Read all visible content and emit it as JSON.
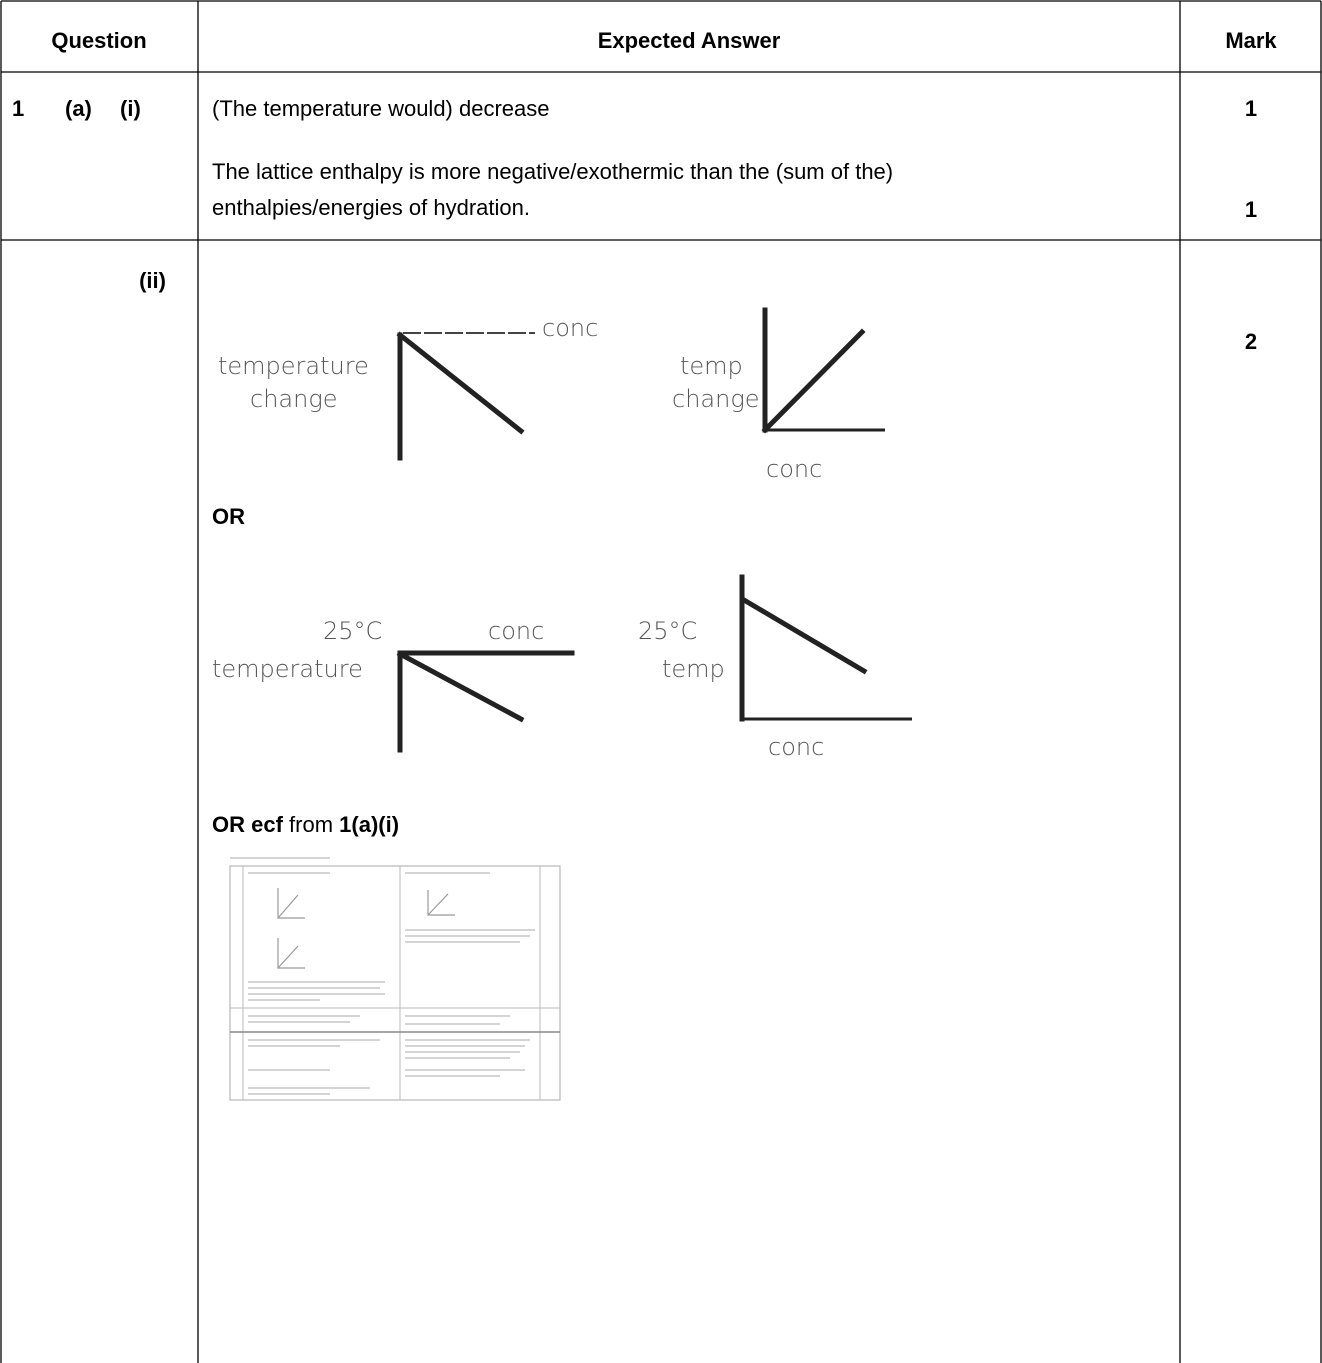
{
  "table": {
    "header": [
      "Question",
      "Expected Answer",
      "Mark"
    ],
    "rows": [
      {
        "number": "1",
        "part": "(a)",
        "subpart": "(i)",
        "answer": [
          "(The temperature would) decrease",
          "The lattice enthalpy is more negative/exothermic than the (sum of the)",
          "enthalpies/energies of hydration."
        ],
        "marks": [
          "1",
          "1"
        ]
      },
      {
        "subpart": "(ii)",
        "mark": "2",
        "sketches": [
          {
            "labels": [
              "temperature",
              "change",
              "conc"
            ]
          },
          {
            "labels": [
              "temp",
              "change",
              "conc"
            ]
          },
          {
            "labels": [
              "25°C",
              "conc",
              "temperature"
            ]
          },
          {
            "labels": [
              "25°C",
              "temp",
              "conc"
            ]
          }
        ],
        "or": "OR",
        "ecf": [
          "OR ecf",
          " from ",
          "1(a)(i)"
        ]
      }
    ]
  }
}
